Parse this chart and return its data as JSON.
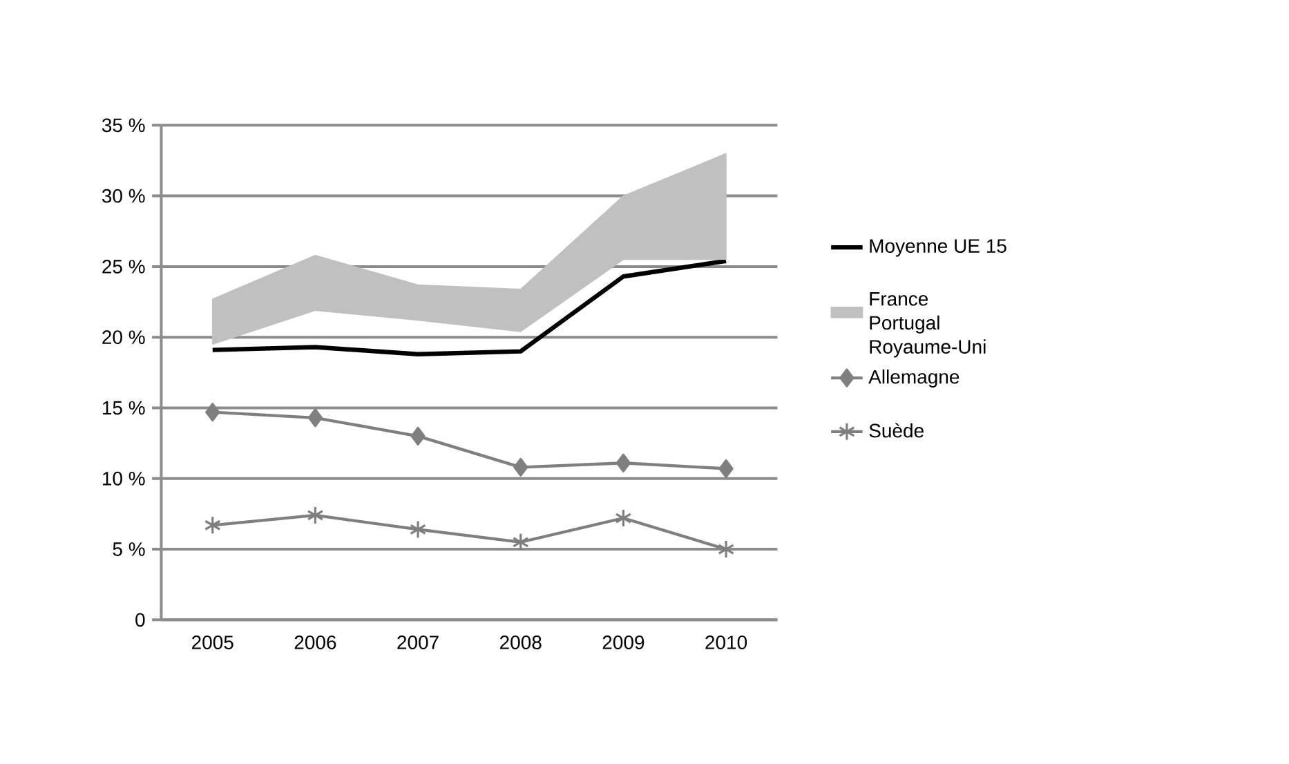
{
  "chart_data": {
    "type": "line",
    "categories": [
      "2005",
      "2006",
      "2007",
      "2008",
      "2009",
      "2010"
    ],
    "series": [
      {
        "name": "Moyenne UE 15",
        "color": "#000000",
        "marker": "none",
        "values": [
          19.1,
          19.3,
          18.8,
          19.0,
          24.3,
          25.4
        ]
      },
      {
        "name": "France Portugal Royaume-Uni",
        "type": "area",
        "color": "#c0c0c0",
        "values": [
          null,
          null,
          null,
          null,
          null,
          null
        ],
        "upper": [
          22.7,
          25.8,
          23.7,
          23.4,
          30.0,
          33.0
        ],
        "lower": [
          19.5,
          21.9,
          21.2,
          20.4,
          25.5,
          25.5
        ]
      },
      {
        "name": "Allemagne",
        "color": "#7f7f7f",
        "marker": "diamond",
        "values": [
          14.7,
          14.3,
          13.0,
          10.8,
          11.1,
          10.7
        ]
      },
      {
        "name": "Suède",
        "color": "#7f7f7f",
        "marker": "cross",
        "values": [
          6.7,
          7.4,
          6.4,
          5.5,
          7.2,
          5.0
        ]
      }
    ],
    "ylim": [
      0,
      35
    ],
    "yticks": [
      0,
      {
        "value": 5,
        "label": "5 %"
      },
      {
        "value": 10,
        "label": "10 %"
      },
      {
        "value": 15,
        "label": "15 %"
      },
      {
        "value": 20,
        "label": "20 %"
      },
      {
        "value": 25,
        "label": "25 %"
      },
      {
        "value": 30,
        "label": "30 %"
      },
      {
        "value": 35,
        "label": "35 %"
      }
    ],
    "grid": "y",
    "legend": "right"
  }
}
